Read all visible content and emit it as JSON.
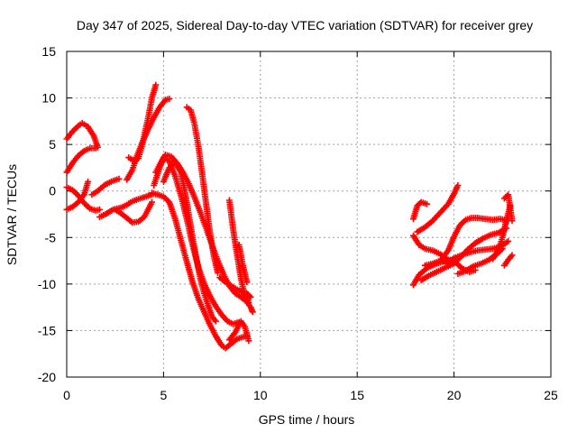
{
  "chart_data": {
    "type": "scatter",
    "title": "Day 347 of 2025, Sidereal Day-to-day VTEC variation (SDTVAR) for receiver grey",
    "xlabel": "GPS time / hours",
    "ylabel": "SDTVAR / TECUs",
    "xlim": [
      0,
      25
    ],
    "ylim": [
      -20,
      15
    ],
    "xticks": [
      0,
      5,
      10,
      15,
      20,
      25
    ],
    "yticks": [
      -20,
      -15,
      -10,
      -5,
      0,
      5,
      10,
      15
    ],
    "grid": true,
    "marker": "+",
    "color": "#ff0000",
    "series": [
      {
        "x": [
          0.0,
          0.3,
          0.6,
          0.8,
          1.1,
          1.4,
          1.6
        ],
        "y": [
          5.6,
          6.4,
          7.0,
          7.3,
          6.9,
          5.9,
          4.7
        ]
      },
      {
        "x": [
          0.0,
          0.3,
          0.6,
          0.9,
          1.2,
          1.5
        ],
        "y": [
          2.0,
          3.0,
          3.8,
          4.3,
          4.6,
          4.6
        ]
      },
      {
        "x": [
          0.0,
          0.3,
          0.6,
          0.9,
          1.2,
          1.5,
          1.7
        ],
        "y": [
          0.4,
          0.1,
          -0.5,
          -1.3,
          -1.9,
          -2.1,
          -2.0
        ]
      },
      {
        "x": [
          0.0,
          0.3,
          0.6,
          0.9,
          1.1
        ],
        "y": [
          -2.0,
          -1.7,
          -1.2,
          -0.4,
          1.0
        ]
      },
      {
        "x": [
          1.3,
          1.6,
          2.0,
          2.4,
          2.7
        ],
        "y": [
          -0.4,
          0.0,
          0.7,
          1.1,
          1.3
        ]
      },
      {
        "x": [
          1.7,
          2.0,
          2.4,
          2.8,
          3.1,
          3.4,
          3.8,
          4.1,
          4.5
        ],
        "y": [
          -2.8,
          -2.5,
          -2.0,
          -1.8,
          -1.5,
          -1.1,
          -0.8,
          -0.6,
          -0.3
        ]
      },
      {
        "x": [
          2.5,
          2.8,
          3.1,
          3.4,
          3.7,
          4.0,
          4.4
        ],
        "y": [
          -2.0,
          -2.4,
          -2.9,
          -3.4,
          -3.3,
          -2.8,
          -1.2
        ]
      },
      {
        "x": [
          3.1,
          3.4,
          3.6,
          3.9,
          4.2,
          4.5,
          4.8,
          5.1,
          5.3
        ],
        "y": [
          1.2,
          2.3,
          3.6,
          5.2,
          6.6,
          7.9,
          9.0,
          9.8,
          9.9
        ]
      },
      {
        "x": [
          3.2,
          3.5,
          3.7,
          3.9,
          4.2,
          4.4,
          4.6
        ],
        "y": [
          3.6,
          3.2,
          3.5,
          5.0,
          7.8,
          10.0,
          11.4
        ]
      },
      {
        "x": [
          4.6,
          4.9,
          5.1,
          5.4,
          5.7,
          6.0,
          6.3,
          6.6,
          6.9,
          7.2,
          7.5,
          7.8,
          8.1,
          8.4,
          8.7,
          9.0,
          9.3,
          9.5,
          9.6
        ],
        "y": [
          2.0,
          3.2,
          3.9,
          3.7,
          3.0,
          2.0,
          0.8,
          -0.7,
          -2.3,
          -4.0,
          -5.8,
          -7.5,
          -9.0,
          -10.2,
          -11.0,
          -11.4,
          -11.9,
          -12.5,
          -13.0
        ]
      },
      {
        "x": [
          4.5,
          4.8,
          5.0,
          5.3,
          5.6,
          5.9,
          6.2,
          6.5,
          6.8,
          7.1,
          7.4,
          7.7,
          8.0,
          8.3,
          8.6,
          8.9
        ],
        "y": [
          0.6,
          2.5,
          3.6,
          3.2,
          1.6,
          -0.5,
          -3.0,
          -5.8,
          -8.2,
          -10.0,
          -11.3,
          -12.4,
          -13.3,
          -14.0,
          -14.3,
          -14.1
        ]
      },
      {
        "x": [
          4.4,
          4.7,
          5.0,
          5.3,
          5.6,
          5.9,
          6.2,
          6.5,
          6.8,
          7.1,
          7.4,
          7.7,
          8.0,
          8.2,
          8.5,
          8.8,
          9.1,
          9.3
        ],
        "y": [
          -0.2,
          -0.4,
          -0.6,
          -1.2,
          -3.0,
          -5.3,
          -7.6,
          -9.8,
          -11.6,
          -13.0,
          -14.4,
          -15.6,
          -16.6,
          -16.9,
          -16.4,
          -15.9,
          -15.7,
          -15.6
        ]
      },
      {
        "x": [
          5.0,
          5.3,
          5.6,
          5.9,
          6.1,
          6.3,
          6.5,
          6.7,
          6.9,
          7.1,
          7.3,
          7.5,
          7.7
        ],
        "y": [
          1.0,
          2.5,
          3.1,
          2.0,
          0.0,
          -2.5,
          -5.0,
          -7.3,
          -9.4,
          -11.0,
          -12.3,
          -13.5,
          -14.0
        ]
      },
      {
        "x": [
          6.2,
          6.4,
          6.6,
          6.8,
          7.0,
          7.2,
          7.4,
          7.6,
          7.8
        ],
        "y": [
          9.0,
          8.7,
          7.2,
          4.8,
          1.8,
          -1.4,
          -4.5,
          -7.0,
          -8.8
        ]
      },
      {
        "x": [
          7.9,
          8.2,
          8.5,
          8.8,
          9.1,
          9.3,
          9.5
        ],
        "y": [
          -9.3,
          -9.8,
          -10.2,
          -10.6,
          -10.9,
          -11.0,
          -11.4
        ]
      },
      {
        "x": [
          8.4,
          8.6,
          8.8,
          9.0,
          9.2,
          9.4
        ],
        "y": [
          -1.0,
          -4.2,
          -6.9,
          -9.4,
          -11.3,
          -12.0
        ]
      },
      {
        "x": [
          8.4,
          8.7,
          9.0,
          9.2,
          9.4
        ],
        "y": [
          -16.0,
          -15.2,
          -14.0,
          -14.6,
          -16.1
        ]
      },
      {
        "x": [
          8.9,
          9.1,
          9.3
        ],
        "y": [
          -5.8,
          -8.0,
          -9.8
        ]
      },
      {
        "x": [
          17.9,
          18.1,
          18.3,
          18.6
        ],
        "y": [
          -3.0,
          -1.6,
          -1.2,
          -1.4
        ]
      },
      {
        "x": [
          17.9,
          18.2,
          18.5,
          18.9,
          19.3,
          19.7,
          20.0
        ],
        "y": [
          -4.8,
          -5.8,
          -6.2,
          -6.4,
          -6.8,
          -7.4,
          -7.8
        ]
      },
      {
        "x": [
          17.9,
          18.2,
          18.6,
          19.0,
          19.4,
          19.8,
          20.1,
          20.4,
          20.8,
          21.1
        ],
        "y": [
          -10.1,
          -9.0,
          -8.3,
          -7.9,
          -7.6,
          -7.4,
          -7.7,
          -8.3,
          -8.7,
          -8.5
        ]
      },
      {
        "x": [
          18.1,
          18.5,
          18.9,
          19.3,
          19.7,
          20.0,
          20.2
        ],
        "y": [
          -4.4,
          -3.9,
          -3.2,
          -2.3,
          -1.4,
          -0.3,
          0.6
        ]
      },
      {
        "x": [
          18.3,
          18.7,
          19.1,
          19.5,
          19.9,
          20.3,
          20.7,
          21.1,
          21.5,
          21.9,
          22.3,
          22.7
        ],
        "y": [
          -9.6,
          -9.1,
          -8.7,
          -8.3,
          -7.9,
          -7.2,
          -6.3,
          -5.6,
          -5.1,
          -4.7,
          -4.5,
          -4.0
        ]
      },
      {
        "x": [
          18.5,
          18.9,
          19.3,
          19.7,
          20.0,
          20.3,
          20.6,
          20.9,
          21.2
        ],
        "y": [
          -8.0,
          -7.8,
          -7.5,
          -6.4,
          -4.9,
          -3.7,
          -3.1,
          -2.9,
          -2.9
        ]
      },
      {
        "x": [
          21.2,
          21.6,
          22.0,
          22.4,
          22.8
        ],
        "y": [
          -2.9,
          -3.0,
          -3.1,
          -3.0,
          -3.2
        ]
      },
      {
        "x": [
          19.6,
          20.0,
          20.4,
          20.8,
          21.2,
          21.6,
          22.0,
          22.4,
          22.8
        ],
        "y": [
          -7.8,
          -7.2,
          -6.9,
          -6.6,
          -6.4,
          -6.3,
          -6.2,
          -6.0,
          -5.4
        ]
      },
      {
        "x": [
          20.2,
          20.6,
          21.0,
          21.4,
          21.8,
          22.2,
          22.5
        ],
        "y": [
          -8.9,
          -8.6,
          -8.1,
          -7.8,
          -7.4,
          -6.8,
          -6.2
        ]
      },
      {
        "x": [
          22.0,
          22.3,
          22.5,
          22.7,
          22.9
        ],
        "y": [
          -7.3,
          -6.3,
          -5.0,
          -3.2,
          -1.6
        ]
      },
      {
        "x": [
          22.6,
          22.8,
          23.0
        ],
        "y": [
          -0.8,
          -0.4,
          -3.2
        ]
      },
      {
        "x": [
          22.6,
          22.8,
          23.0
        ],
        "y": [
          -8.0,
          -7.4,
          -6.9
        ]
      }
    ]
  }
}
